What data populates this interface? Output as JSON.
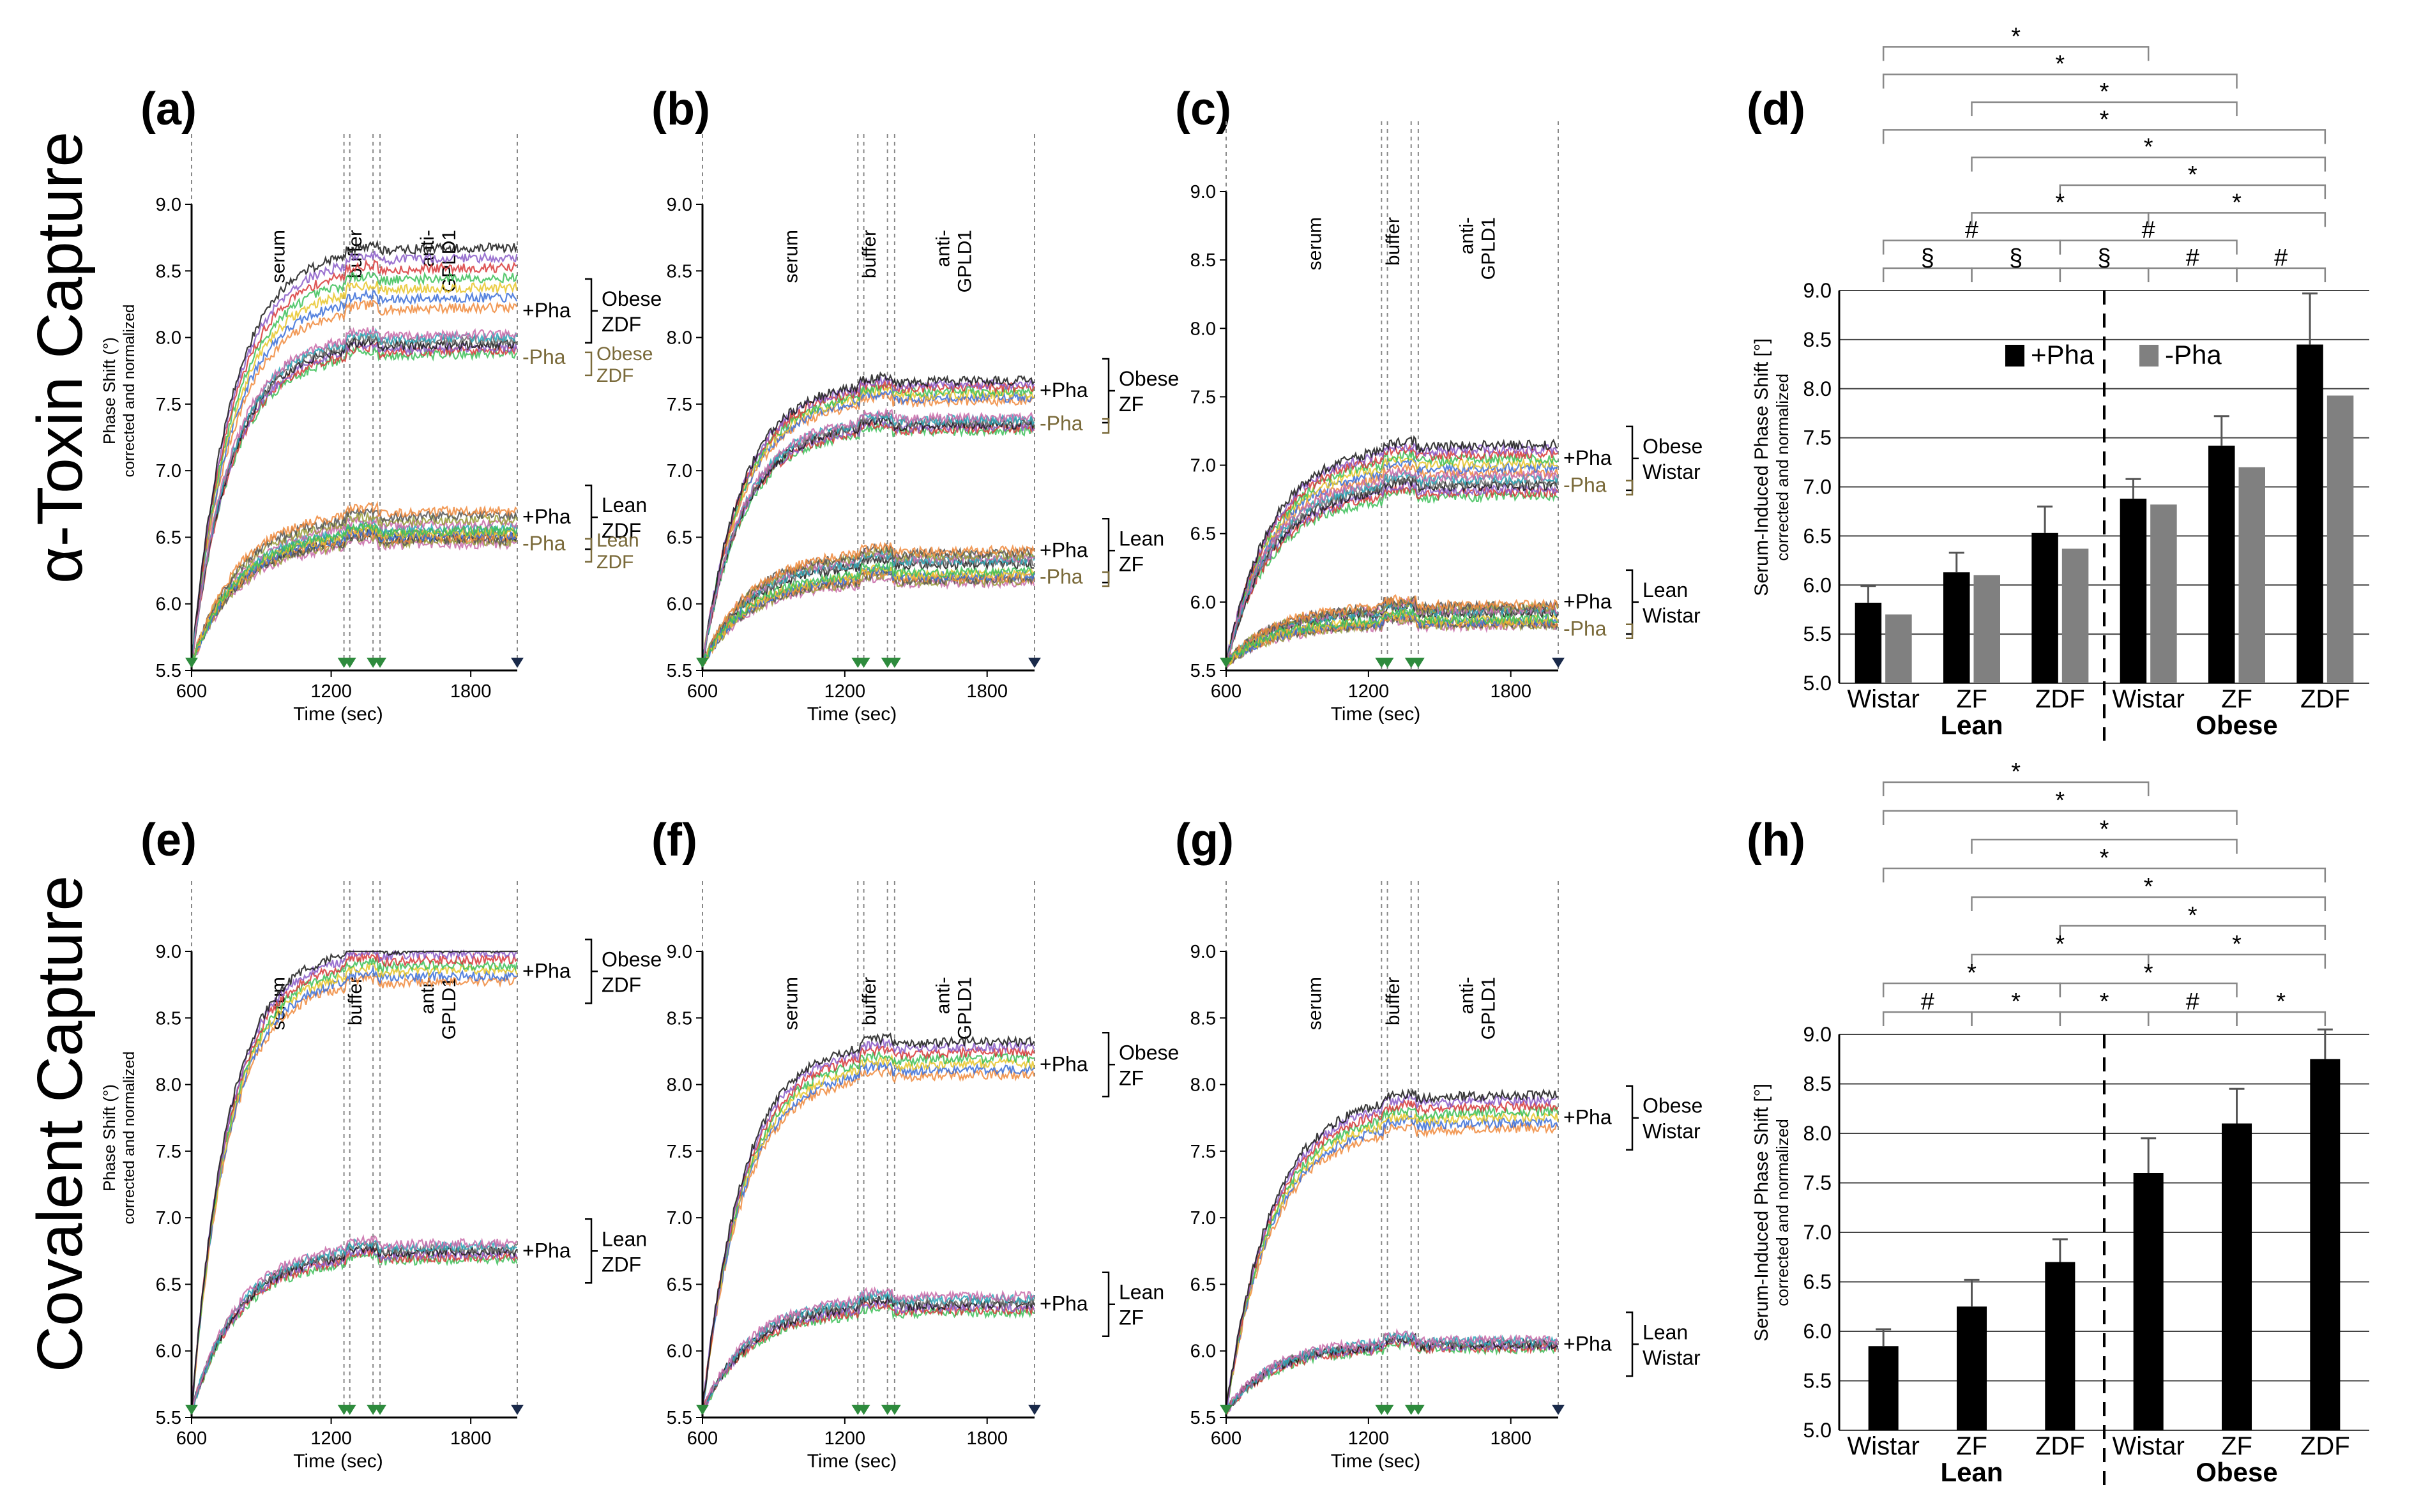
{
  "figure": {
    "row_labels": [
      "α-Toxin Capture",
      "Covalent Capture"
    ],
    "colors": {
      "axis": "#000000",
      "grid": "#888888",
      "plus_bar": "#000000",
      "minus_bar": "#808080",
      "minus_label": "#7a6a3a",
      "marker_green": "#2e8b3d",
      "marker_dark": "#1a2a4a"
    }
  },
  "chart_data": [
    {
      "panel": "(a)",
      "type": "line",
      "xlabel": "Time (sec)",
      "ylabel": "Phase Shift (°)",
      "ylabel2": "corrected and normalized",
      "xticks": [
        600,
        1200,
        1800
      ],
      "yticks": [
        5.5,
        6.0,
        6.5,
        7.0,
        7.5,
        8.0,
        8.5,
        9.0
      ],
      "xlim": [
        600,
        2000
      ],
      "ylim": [
        5.5,
        9.0
      ],
      "phases": [
        {
          "label": "serum",
          "x": 1000
        },
        {
          "label": "buffer",
          "x": 1330
        },
        {
          "label": "anti-",
          "label2": "GPLD1",
          "x": 1640
        }
      ],
      "dividers": [
        600,
        1255,
        1280,
        1380,
        1410,
        2000
      ],
      "groups": [
        {
          "name": "Obese ZDF +Pha",
          "pha": "+Pha",
          "final": 8.45,
          "spread": 0.45,
          "tau": 170
        },
        {
          "name": "Obese ZDF -Pha",
          "pha": "-Pha",
          "final": 7.95,
          "spread": 0.15,
          "tau": 170
        },
        {
          "name": "Lean ZDF +Pha",
          "pha": "+Pha",
          "final": 6.6,
          "spread": 0.2,
          "tau": 200
        },
        {
          "name": "Lean ZDF -Pha",
          "pha": "-Pha",
          "final": 6.5,
          "spread": 0.1,
          "tau": 200
        }
      ],
      "labels": [
        {
          "pha": "+Pha",
          "tag": "Obese",
          "tag2": "ZDF",
          "y": 8.2,
          "minus": false
        },
        {
          "pha": "-Pha",
          "tag": "Obese",
          "tag2": "ZDF",
          "y": 7.85,
          "minus": true
        },
        {
          "pha": "+Pha",
          "tag": "Lean",
          "tag2": "ZDF",
          "y": 6.65,
          "minus": false
        },
        {
          "pha": "-Pha",
          "tag": "Lean",
          "tag2": "ZDF",
          "y": 6.45,
          "minus": true
        }
      ]
    },
    {
      "panel": "(b)",
      "type": "line",
      "xlabel": "Time (sec)",
      "ylabel": "",
      "ylabel2": "",
      "xticks": [
        600,
        1200,
        1800
      ],
      "yticks": [
        5.5,
        6.0,
        6.5,
        7.0,
        7.5,
        8.0,
        8.5,
        9.0
      ],
      "xlim": [
        600,
        2000
      ],
      "ylim": [
        5.5,
        9.0
      ],
      "phases": [
        {
          "label": "serum",
          "x": 1000
        },
        {
          "label": "buffer",
          "x": 1330
        },
        {
          "label": "anti-",
          "label2": "GPLD1",
          "x": 1640
        }
      ],
      "dividers": [
        600,
        1255,
        1280,
        1380,
        1410,
        2000
      ],
      "groups": [
        {
          "name": "Obese ZF +Pha",
          "pha": "+Pha",
          "final": 7.6,
          "spread": 0.15,
          "tau": 170
        },
        {
          "name": "Obese ZF -Pha",
          "pha": "-Pha",
          "final": 7.35,
          "spread": 0.1,
          "tau": 170
        },
        {
          "name": "Lean ZF +Pha",
          "pha": "+Pha",
          "final": 6.35,
          "spread": 0.1,
          "tau": 200
        },
        {
          "name": "Lean ZF -Pha",
          "pha": "-Pha",
          "final": 6.2,
          "spread": 0.08,
          "tau": 200
        }
      ],
      "labels": [
        {
          "pha": "+Pha",
          "tag": "Obese",
          "tag2": "ZF",
          "y": 7.6,
          "minus": false
        },
        {
          "pha": "-Pha",
          "tag": "",
          "tag2": "",
          "y": 7.35,
          "minus": true
        },
        {
          "pha": "+Pha",
          "tag": "Lean",
          "tag2": "ZF",
          "y": 6.4,
          "minus": false
        },
        {
          "pha": "-Pha",
          "tag": "",
          "tag2": "",
          "y": 6.2,
          "minus": true
        }
      ]
    },
    {
      "panel": "(c)",
      "type": "line",
      "xlabel": "Time (sec)",
      "ylabel": "",
      "ylabel2": "",
      "xticks": [
        600,
        1200,
        1800
      ],
      "yticks": [
        5.5,
        6.0,
        6.5,
        7.0,
        7.5,
        8.0,
        8.5,
        9.0
      ],
      "xlim": [
        600,
        2000
      ],
      "ylim": [
        5.5,
        9.0
      ],
      "phases": [
        {
          "label": "serum",
          "x": 1000
        },
        {
          "label": "buffer",
          "x": 1330
        },
        {
          "label": "anti-",
          "label2": "GPLD1",
          "x": 1640
        }
      ],
      "dividers": [
        600,
        1255,
        1280,
        1380,
        1410,
        2000
      ],
      "groups": [
        {
          "name": "Obese Wistar +Pha",
          "pha": "+Pha",
          "final": 7.05,
          "spread": 0.2,
          "tau": 190
        },
        {
          "name": "Obese Wistar -Pha",
          "pha": "-Pha",
          "final": 6.85,
          "spread": 0.15,
          "tau": 190
        },
        {
          "name": "Lean Wistar +Pha",
          "pha": "+Pha",
          "final": 5.95,
          "spread": 0.06,
          "tau": 200
        },
        {
          "name": "Lean Wistar -Pha",
          "pha": "-Pha",
          "final": 5.85,
          "spread": 0.05,
          "tau": 200
        }
      ],
      "labels": [
        {
          "pha": "+Pha",
          "tag": "Obese",
          "tag2": "Wistar",
          "y": 7.05,
          "minus": false
        },
        {
          "pha": "-Pha",
          "tag": "",
          "tag2": "",
          "y": 6.85,
          "minus": true
        },
        {
          "pha": "+Pha",
          "tag": "Lean",
          "tag2": "Wistar",
          "y": 6.0,
          "minus": false
        },
        {
          "pha": "-Pha",
          "tag": "",
          "tag2": "",
          "y": 5.8,
          "minus": true
        }
      ]
    },
    {
      "panel": "(d)",
      "type": "bar",
      "ylabel": "Serum-Induced Phase Shift [°]",
      "ylabel2": "corrected and normalized",
      "yticks": [
        5.0,
        5.5,
        6.0,
        6.5,
        7.0,
        7.5,
        8.0,
        8.5,
        9.0
      ],
      "ylim": [
        5.0,
        9.0
      ],
      "categories": [
        "Wistar",
        "ZF",
        "ZDF",
        "Wistar",
        "ZF",
        "ZDF"
      ],
      "group_labels": [
        {
          "label": "Lean",
          "span": [
            0,
            2
          ]
        },
        {
          "label": "Obese",
          "span": [
            3,
            5
          ]
        }
      ],
      "legend": [
        "+Pha",
        "-Pha"
      ],
      "series": [
        {
          "name": "+Pha",
          "values": [
            5.82,
            6.13,
            6.53,
            6.88,
            7.42,
            8.45
          ],
          "errors": [
            0.17,
            0.2,
            0.27,
            0.2,
            0.3,
            0.52
          ]
        },
        {
          "name": "-Pha",
          "values": [
            5.7,
            6.1,
            6.37,
            6.82,
            7.2,
            7.93
          ],
          "errors": [
            0,
            0,
            0,
            0,
            0,
            0
          ]
        }
      ],
      "brackets": [
        {
          "from": 0,
          "to": 3,
          "sym": "*",
          "level": 8
        },
        {
          "from": 0,
          "to": 4,
          "sym": "*",
          "level": 7
        },
        {
          "from": 1,
          "to": 4,
          "sym": "*",
          "level": 6
        },
        {
          "from": 0,
          "to": 5,
          "sym": "*",
          "level": 5
        },
        {
          "from": 1,
          "to": 5,
          "sym": "*",
          "level": 4
        },
        {
          "from": 2,
          "to": 5,
          "sym": "*",
          "level": 3
        },
        {
          "from": 1,
          "to": 3,
          "sym": "*",
          "level": 2
        },
        {
          "from": 3,
          "to": 5,
          "sym": "*",
          "level": 2
        },
        {
          "from": 0,
          "to": 2,
          "sym": "#",
          "level": 1
        },
        {
          "from": 2,
          "to": 4,
          "sym": "#",
          "level": 1
        },
        {
          "from": 0,
          "to": 1,
          "sym": "§",
          "level": 0
        },
        {
          "from": 1,
          "to": 2,
          "sym": "§",
          "level": 0
        },
        {
          "from": 2,
          "to": 3,
          "sym": "§",
          "level": 0
        },
        {
          "from": 3,
          "to": 4,
          "sym": "#",
          "level": 0
        },
        {
          "from": 4,
          "to": 5,
          "sym": "#",
          "level": 0
        }
      ]
    },
    {
      "panel": "(e)",
      "type": "line",
      "xlabel": "Time (sec)",
      "ylabel": "Phase Shift (°)",
      "ylabel2": "corrected and normalized",
      "xticks": [
        600,
        1200,
        1800
      ],
      "yticks": [
        5.5,
        6.0,
        6.5,
        7.0,
        7.5,
        8.0,
        8.5,
        9.0
      ],
      "xlim": [
        600,
        2000
      ],
      "ylim": [
        5.5,
        9.0
      ],
      "phases": [
        {
          "label": "serum",
          "x": 1000
        },
        {
          "label": "buffer",
          "x": 1330
        },
        {
          "label": "anti-",
          "label2": "GPLD1",
          "x": 1640
        }
      ],
      "dividers": [
        600,
        1255,
        1280,
        1380,
        1410,
        2000
      ],
      "groups": [
        {
          "name": "Obese ZDF +Pha",
          "pha": "+Pha",
          "final": 8.9,
          "spread": 0.25,
          "tau": 160
        },
        {
          "name": "Lean ZDF +Pha",
          "pha": "+Pha",
          "final": 6.75,
          "spread": 0.12,
          "tau": 200
        }
      ],
      "labels": [
        {
          "pha": "+Pha",
          "tag": "Obese",
          "tag2": "ZDF",
          "y": 8.85,
          "minus": false
        },
        {
          "pha": "+Pha",
          "tag": "Lean",
          "tag2": "ZDF",
          "y": 6.75,
          "minus": false
        }
      ]
    },
    {
      "panel": "(f)",
      "type": "line",
      "xlabel": "Time (sec)",
      "ylabel": "",
      "ylabel2": "",
      "xticks": [
        600,
        1200,
        1800
      ],
      "yticks": [
        5.5,
        6.0,
        6.5,
        7.0,
        7.5,
        8.0,
        8.5,
        9.0
      ],
      "xlim": [
        600,
        2000
      ],
      "ylim": [
        5.5,
        9.0
      ],
      "phases": [
        {
          "label": "serum",
          "x": 1000
        },
        {
          "label": "buffer",
          "x": 1330
        },
        {
          "label": "anti-",
          "label2": "GPLD1",
          "x": 1640
        }
      ],
      "dividers": [
        600,
        1255,
        1280,
        1380,
        1410,
        2000
      ],
      "groups": [
        {
          "name": "Obese ZF +Pha",
          "pha": "+Pha",
          "final": 8.2,
          "spread": 0.25,
          "tau": 170
        },
        {
          "name": "Lean ZF +Pha",
          "pha": "+Pha",
          "final": 6.35,
          "spread": 0.12,
          "tau": 200
        }
      ],
      "labels": [
        {
          "pha": "+Pha",
          "tag": "Obese",
          "tag2": "ZF",
          "y": 8.15,
          "minus": false
        },
        {
          "pha": "+Pha",
          "tag": "Lean",
          "tag2": "ZF",
          "y": 6.35,
          "minus": false
        }
      ]
    },
    {
      "panel": "(g)",
      "type": "line",
      "xlabel": "Time (sec)",
      "ylabel": "",
      "ylabel2": "",
      "xticks": [
        600,
        1200,
        1800
      ],
      "yticks": [
        5.5,
        6.0,
        6.5,
        7.0,
        7.5,
        8.0,
        8.5,
        9.0
      ],
      "xlim": [
        600,
        2000
      ],
      "ylim": [
        5.5,
        9.0
      ],
      "phases": [
        {
          "label": "serum",
          "x": 1000
        },
        {
          "label": "buffer",
          "x": 1330
        },
        {
          "label": "anti-",
          "label2": "GPLD1",
          "x": 1640
        }
      ],
      "dividers": [
        600,
        1255,
        1280,
        1380,
        1410,
        2000
      ],
      "groups": [
        {
          "name": "Obese Wistar +Pha",
          "pha": "+Pha",
          "final": 7.8,
          "spread": 0.25,
          "tau": 190
        },
        {
          "name": "Lean Wistar +Pha",
          "pha": "+Pha",
          "final": 6.05,
          "spread": 0.07,
          "tau": 200
        }
      ],
      "labels": [
        {
          "pha": "+Pha",
          "tag": "Obese",
          "tag2": "Wistar",
          "y": 7.75,
          "minus": false
        },
        {
          "pha": "+Pha",
          "tag": "Lean",
          "tag2": "Wistar",
          "y": 6.05,
          "minus": false
        }
      ]
    },
    {
      "panel": "(h)",
      "type": "bar",
      "ylabel": "Serum-Induced Phase Shift [°]",
      "ylabel2": "corrected and normalized",
      "yticks": [
        5.0,
        5.5,
        6.0,
        6.5,
        7.0,
        7.5,
        8.0,
        8.5,
        9.0
      ],
      "ylim": [
        5.0,
        9.0
      ],
      "categories": [
        "Wistar",
        "ZF",
        "ZDF",
        "Wistar",
        "ZF",
        "ZDF"
      ],
      "group_labels": [
        {
          "label": "Lean",
          "span": [
            0,
            2
          ]
        },
        {
          "label": "Obese",
          "span": [
            3,
            5
          ]
        }
      ],
      "legend": [],
      "series": [
        {
          "name": "+Pha",
          "values": [
            5.85,
            6.25,
            6.7,
            7.6,
            8.1,
            8.75
          ],
          "errors": [
            0.17,
            0.27,
            0.23,
            0.35,
            0.35,
            0.3
          ]
        }
      ],
      "brackets": [
        {
          "from": 0,
          "to": 3,
          "sym": "*",
          "level": 8
        },
        {
          "from": 0,
          "to": 4,
          "sym": "*",
          "level": 7
        },
        {
          "from": 1,
          "to": 4,
          "sym": "*",
          "level": 6
        },
        {
          "from": 0,
          "to": 5,
          "sym": "*",
          "level": 5
        },
        {
          "from": 1,
          "to": 5,
          "sym": "*",
          "level": 4
        },
        {
          "from": 2,
          "to": 5,
          "sym": "*",
          "level": 3
        },
        {
          "from": 1,
          "to": 3,
          "sym": "*",
          "level": 2
        },
        {
          "from": 3,
          "to": 5,
          "sym": "*",
          "level": 2
        },
        {
          "from": 0,
          "to": 2,
          "sym": "*",
          "level": 1
        },
        {
          "from": 2,
          "to": 4,
          "sym": "*",
          "level": 1
        },
        {
          "from": 0,
          "to": 1,
          "sym": "#",
          "level": 0
        },
        {
          "from": 1,
          "to": 2,
          "sym": "*",
          "level": 0
        },
        {
          "from": 2,
          "to": 3,
          "sym": "*",
          "level": 0
        },
        {
          "from": 3,
          "to": 4,
          "sym": "#",
          "level": 0
        },
        {
          "from": 4,
          "to": 5,
          "sym": "*",
          "level": 0
        }
      ]
    }
  ]
}
